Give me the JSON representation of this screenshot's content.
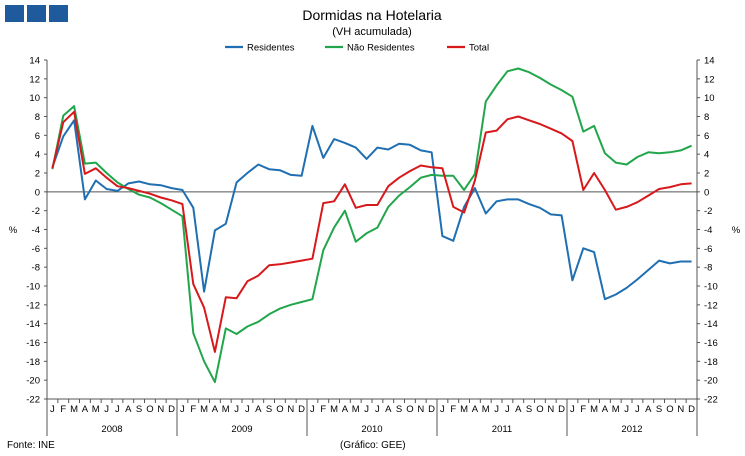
{
  "chart_data": {
    "type": "line",
    "title": "Dormidas na Hotelaria",
    "subtitle": "(VH acumulada)",
    "ylabel": "%",
    "ylim": [
      -22,
      14
    ],
    "yticks": [
      14,
      12,
      10,
      8,
      6,
      4,
      2,
      0,
      -2,
      -4,
      -6,
      -8,
      -10,
      -12,
      -14,
      -16,
      -18,
      -20,
      -22
    ],
    "month_labels": [
      "J",
      "F",
      "M",
      "A",
      "M",
      "J",
      "J",
      "A",
      "S",
      "O",
      "N",
      "D"
    ],
    "years": [
      "2008",
      "2009",
      "2010",
      "2011",
      "2012"
    ],
    "legend_position": "top-center",
    "series": [
      {
        "name": "Residentes",
        "color": "#1f6fb2",
        "values": [
          2.6,
          5.9,
          7.6,
          -0.8,
          1.2,
          0.3,
          0.1,
          0.9,
          1.1,
          0.8,
          0.7,
          0.4,
          0.2,
          -1.7,
          -10.6,
          -4.1,
          -3.4,
          1.0,
          2.0,
          2.9,
          2.4,
          2.3,
          1.8,
          1.7,
          7.0,
          3.6,
          5.6,
          5.2,
          4.7,
          3.5,
          4.7,
          4.5,
          5.1,
          5.0,
          4.4,
          4.2,
          -4.7,
          -5.2,
          -1.6,
          0.4,
          -2.3,
          -1.0,
          -0.8,
          -0.8,
          -1.3,
          -1.7,
          -2.4,
          -2.5,
          -9.4,
          -6.0,
          -6.4,
          -11.4,
          -10.9,
          -10.2,
          -9.3,
          -8.3,
          -7.3,
          -7.6,
          -7.4,
          -7.4
        ]
      },
      {
        "name": "Não Residentes",
        "color": "#22a64b",
        "values": [
          2.4,
          8.1,
          9.1,
          3.0,
          3.1,
          2.0,
          1.0,
          0.3,
          -0.3,
          -0.6,
          -1.2,
          -1.9,
          -2.6,
          -15.0,
          -18.0,
          -20.2,
          -14.5,
          -15.1,
          -14.3,
          -13.8,
          -13.0,
          -12.4,
          -12.0,
          -11.7,
          -11.4,
          -6.2,
          -3.8,
          -2.0,
          -5.3,
          -4.4,
          -3.8,
          -1.6,
          -0.4,
          0.5,
          1.5,
          1.8,
          1.7,
          1.7,
          0.2,
          1.9,
          9.6,
          11.3,
          12.8,
          13.1,
          12.7,
          12.1,
          11.4,
          10.8,
          10.1,
          6.4,
          7.0,
          4.1,
          3.1,
          2.9,
          3.7,
          4.2,
          4.1,
          4.2,
          4.4,
          4.9
        ]
      },
      {
        "name": "Total",
        "color": "#d7191c",
        "values": [
          2.5,
          7.4,
          8.5,
          1.9,
          2.5,
          1.5,
          0.6,
          0.4,
          0.1,
          -0.2,
          -0.6,
          -0.9,
          -1.3,
          -9.8,
          -12.3,
          -17.0,
          -11.2,
          -11.3,
          -9.5,
          -8.9,
          -7.8,
          -7.7,
          -7.5,
          -7.3,
          -7.1,
          -1.2,
          -1.0,
          0.8,
          -1.7,
          -1.4,
          -1.4,
          0.6,
          1.5,
          2.2,
          2.8,
          2.6,
          2.5,
          -1.6,
          -2.2,
          1.2,
          6.3,
          6.5,
          7.7,
          8.0,
          7.6,
          7.2,
          6.7,
          6.2,
          5.4,
          0.2,
          2.0,
          0.2,
          -1.9,
          -1.6,
          -1.1,
          -0.4,
          0.3,
          0.5,
          0.8,
          0.9
        ]
      }
    ]
  },
  "footer": {
    "source": "Fonte: INE",
    "credit": "(Gráfico: GEE)"
  }
}
